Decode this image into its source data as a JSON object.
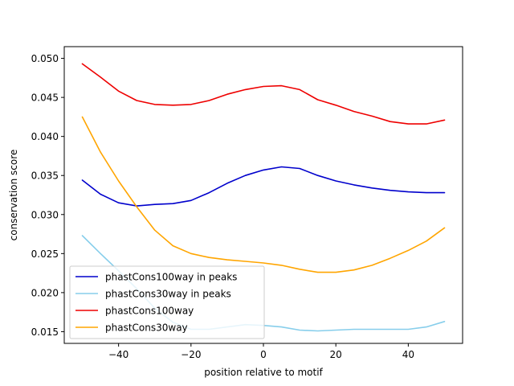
{
  "chart_data": {
    "type": "line",
    "title": "",
    "xlabel": "position relative to motif",
    "ylabel": "conservation score",
    "xlim": [
      -55,
      55
    ],
    "ylim": [
      0.0135,
      0.0515
    ],
    "xticks": [
      -40,
      -20,
      0,
      20,
      40
    ],
    "xtick_labels": [
      "−40",
      "−20",
      "0",
      "20",
      "40"
    ],
    "yticks": [
      0.015,
      0.02,
      0.025,
      0.03,
      0.035,
      0.04,
      0.045,
      0.05
    ],
    "ytick_labels": [
      "0.015",
      "0.020",
      "0.025",
      "0.030",
      "0.035",
      "0.040",
      "0.045",
      "0.050"
    ],
    "grid": false,
    "legend_position": "lower-left",
    "x": [
      -50,
      -45,
      -40,
      -35,
      -30,
      -25,
      -20,
      -15,
      -10,
      -5,
      0,
      5,
      10,
      15,
      20,
      25,
      30,
      35,
      40,
      45,
      50
    ],
    "series": [
      {
        "name": "phastCons100way in peaks",
        "color": "#0000cc",
        "values": [
          0.0344,
          0.0326,
          0.0315,
          0.0311,
          0.0313,
          0.0314,
          0.0318,
          0.0328,
          0.034,
          0.035,
          0.0357,
          0.0361,
          0.0359,
          0.035,
          0.0343,
          0.0338,
          0.0334,
          0.0331,
          0.0329,
          0.0328,
          0.0328
        ]
      },
      {
        "name": "phastCons30way in peaks",
        "color": "#87ceeb",
        "values": [
          0.0273,
          0.025,
          0.0228,
          0.0205,
          0.018,
          0.0162,
          0.0153,
          0.0153,
          0.0156,
          0.0159,
          0.0158,
          0.0156,
          0.0152,
          0.0151,
          0.0152,
          0.0153,
          0.0153,
          0.0153,
          0.0153,
          0.0156,
          0.0163
        ]
      },
      {
        "name": "phastCons100way",
        "color": "#ee0000",
        "values": [
          0.0493,
          0.0476,
          0.0458,
          0.0446,
          0.0441,
          0.044,
          0.0441,
          0.0446,
          0.0454,
          0.046,
          0.0464,
          0.0465,
          0.046,
          0.0447,
          0.044,
          0.0432,
          0.0426,
          0.0419,
          0.0416,
          0.0416,
          0.0421
        ]
      },
      {
        "name": "phastCons30way",
        "color": "#ffa500",
        "values": [
          0.0425,
          0.038,
          0.0343,
          0.031,
          0.028,
          0.026,
          0.025,
          0.0245,
          0.0242,
          0.024,
          0.0238,
          0.0235,
          0.023,
          0.0226,
          0.0226,
          0.0229,
          0.0235,
          0.0244,
          0.0254,
          0.0266,
          0.0283
        ]
      }
    ]
  }
}
